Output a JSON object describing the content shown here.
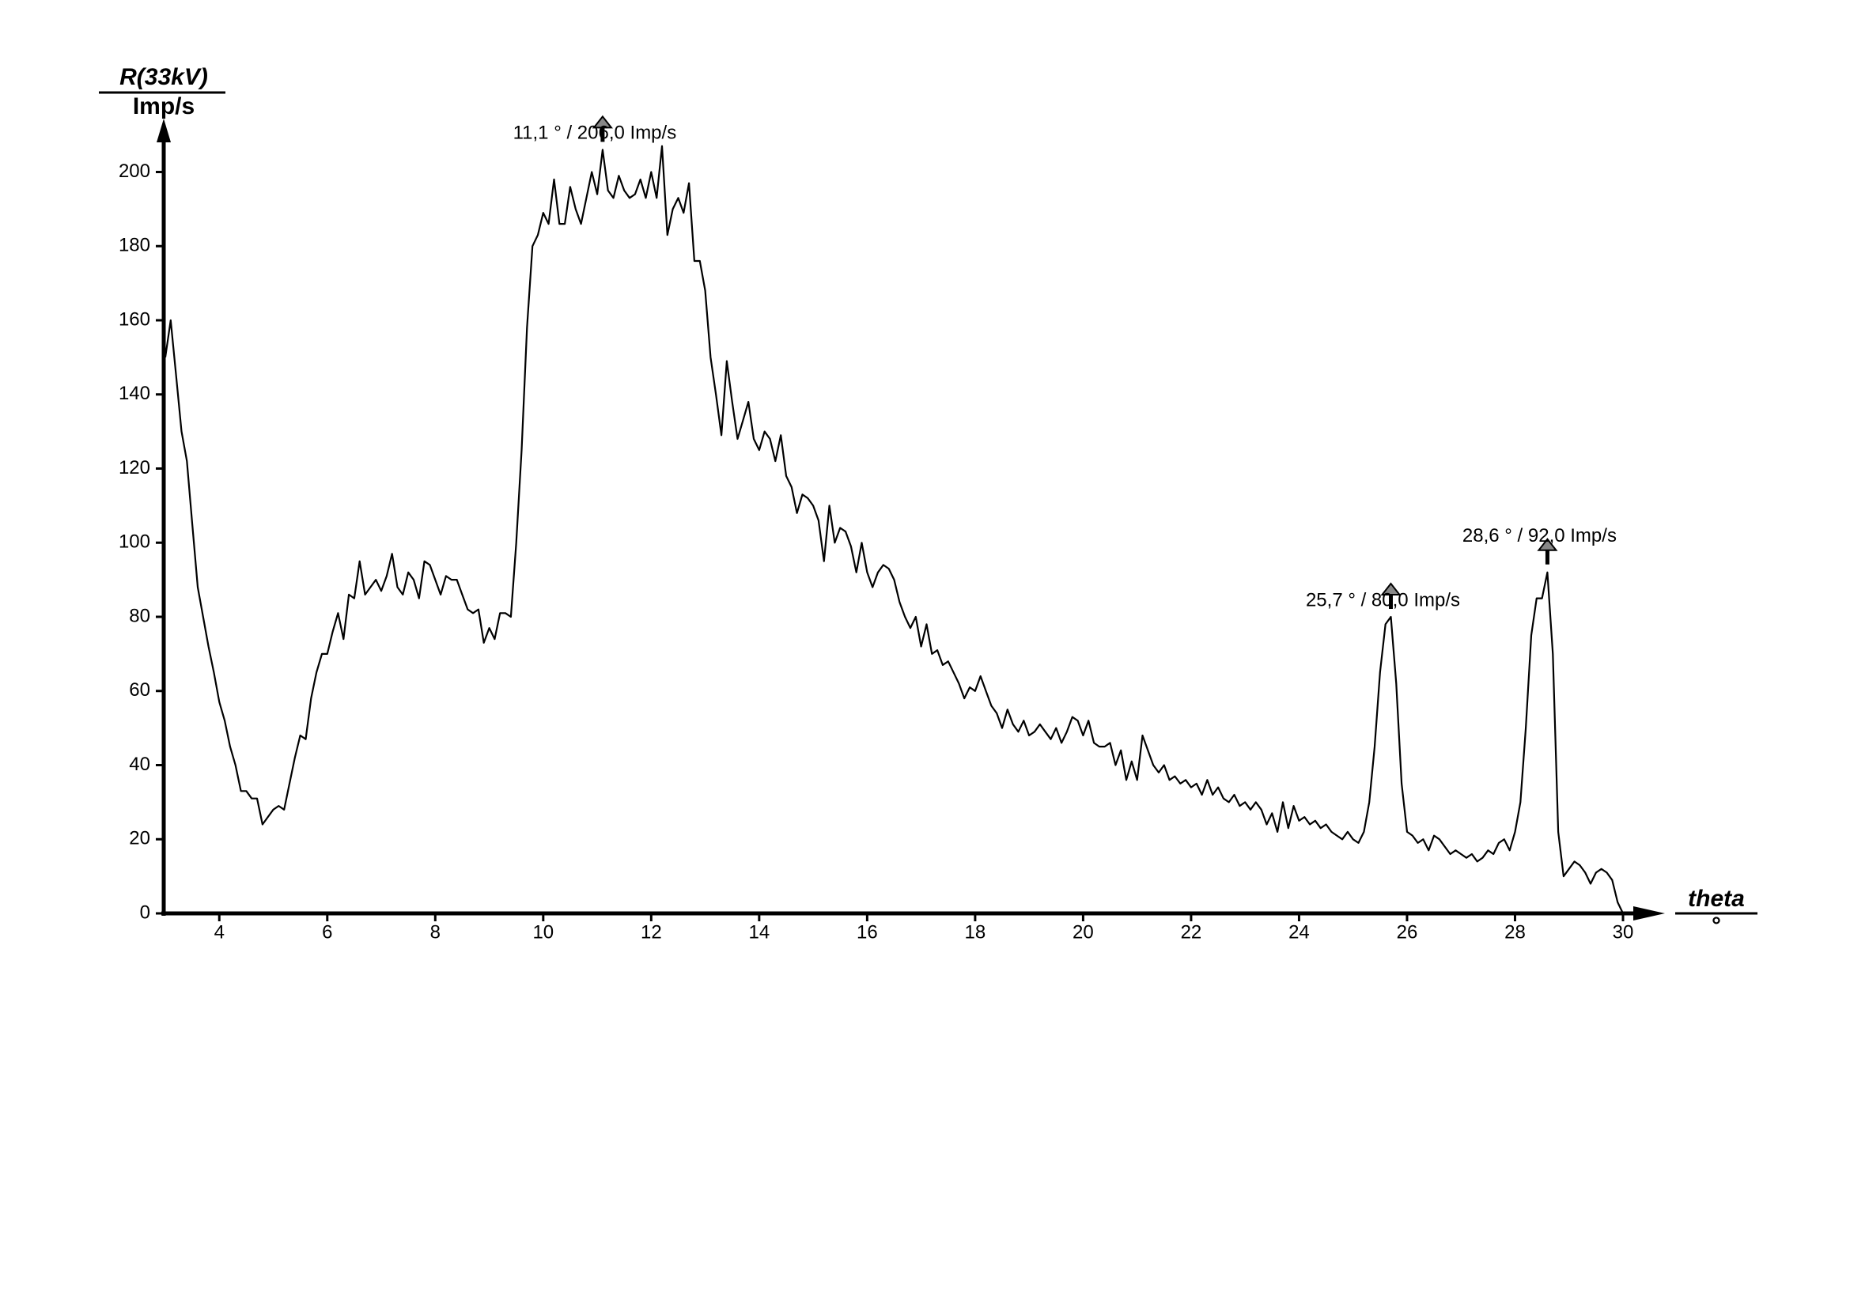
{
  "chart_data": {
    "type": "line",
    "y_label": "R(33kV)",
    "y_unit": "Imp/s",
    "x_label": "theta",
    "x_unit": "°",
    "x": [
      3.0,
      3.1,
      3.2,
      3.3,
      3.4,
      3.5,
      3.6,
      3.7,
      3.8,
      3.9,
      4.0,
      4.1,
      4.2,
      4.3,
      4.4,
      4.5,
      4.6,
      4.7,
      4.8,
      4.9,
      5.0,
      5.1,
      5.2,
      5.3,
      5.4,
      5.5,
      5.6,
      5.7,
      5.8,
      5.9,
      6.0,
      6.1,
      6.2,
      6.3,
      6.4,
      6.5,
      6.6,
      6.7,
      6.8,
      6.9,
      7.0,
      7.1,
      7.2,
      7.3,
      7.4,
      7.5,
      7.6,
      7.7,
      7.8,
      7.9,
      8.0,
      8.1,
      8.2,
      8.3,
      8.4,
      8.5,
      8.6,
      8.7,
      8.8,
      8.9,
      9.0,
      9.1,
      9.2,
      9.3,
      9.4,
      9.5,
      9.6,
      9.7,
      9.8,
      9.9,
      10.0,
      10.1,
      10.2,
      10.3,
      10.4,
      10.5,
      10.6,
      10.7,
      10.8,
      10.9,
      11.0,
      11.1,
      11.2,
      11.3,
      11.4,
      11.5,
      11.6,
      11.7,
      11.8,
      11.9,
      12.0,
      12.1,
      12.2,
      12.3,
      12.4,
      12.5,
      12.6,
      12.7,
      12.8,
      12.9,
      13.0,
      13.1,
      13.2,
      13.3,
      13.4,
      13.5,
      13.6,
      13.7,
      13.8,
      13.9,
      14.0,
      14.1,
      14.2,
      14.3,
      14.4,
      14.5,
      14.6,
      14.7,
      14.8,
      14.9,
      15.0,
      15.1,
      15.2,
      15.3,
      15.4,
      15.5,
      15.6,
      15.7,
      15.8,
      15.9,
      16.0,
      16.1,
      16.2,
      16.3,
      16.4,
      16.5,
      16.6,
      16.7,
      16.8,
      16.9,
      17.0,
      17.1,
      17.2,
      17.3,
      17.4,
      17.5,
      17.6,
      17.7,
      17.8,
      17.9,
      18.0,
      18.1,
      18.2,
      18.3,
      18.4,
      18.5,
      18.6,
      18.7,
      18.8,
      18.9,
      19.0,
      19.1,
      19.2,
      19.3,
      19.4,
      19.5,
      19.6,
      19.7,
      19.8,
      19.9,
      20.0,
      20.1,
      20.2,
      20.3,
      20.4,
      20.5,
      20.6,
      20.7,
      20.8,
      20.9,
      21.0,
      21.1,
      21.2,
      21.3,
      21.4,
      21.5,
      21.6,
      21.7,
      21.8,
      21.9,
      22.0,
      22.1,
      22.2,
      22.3,
      22.4,
      22.5,
      22.6,
      22.7,
      22.8,
      22.9,
      23.0,
      23.1,
      23.2,
      23.3,
      23.4,
      23.5,
      23.6,
      23.7,
      23.8,
      23.9,
      24.0,
      24.1,
      24.2,
      24.3,
      24.4,
      24.5,
      24.6,
      24.7,
      24.8,
      24.9,
      25.0,
      25.1,
      25.2,
      25.3,
      25.4,
      25.5,
      25.6,
      25.7,
      25.8,
      25.9,
      26.0,
      26.1,
      26.2,
      26.3,
      26.4,
      26.5,
      26.6,
      26.7,
      26.8,
      26.9,
      27.0,
      27.1,
      27.2,
      27.3,
      27.4,
      27.5,
      27.6,
      27.7,
      27.8,
      27.9,
      28.0,
      28.1,
      28.2,
      28.3,
      28.4,
      28.5,
      28.6,
      28.7,
      28.8,
      28.9,
      29.0,
      29.1,
      29.2,
      29.3,
      29.4,
      29.5,
      29.6,
      29.7,
      29.8,
      29.9,
      30.0
    ],
    "series": [
      {
        "color": "#000000",
        "values": [
          150,
          160,
          145,
          130,
          122,
          105,
          88,
          80,
          72,
          65,
          57,
          52,
          45,
          40,
          33,
          33,
          31,
          31,
          24,
          26,
          28,
          29,
          28,
          35,
          42,
          48,
          47,
          58,
          65,
          70,
          70,
          76,
          81,
          74,
          86,
          85,
          95,
          86,
          88,
          90,
          87,
          91,
          97,
          88,
          86,
          92,
          90,
          85,
          95,
          94,
          90,
          86,
          91,
          90,
          90,
          86,
          82,
          81,
          82,
          73,
          77,
          74,
          81,
          81,
          80,
          100,
          125,
          158,
          180,
          183,
          189,
          186,
          198,
          186,
          186,
          196,
          190,
          186,
          193,
          200,
          194,
          206,
          195,
          193,
          199,
          195,
          193,
          194,
          198,
          193,
          200,
          193,
          207,
          183,
          190,
          193,
          189,
          197,
          176,
          176,
          168,
          150,
          140,
          129,
          149,
          138,
          128,
          133,
          138,
          128,
          125,
          130,
          128,
          122,
          129,
          118,
          115,
          108,
          113,
          112,
          110,
          106,
          95,
          110,
          100,
          104,
          103,
          99,
          92,
          100,
          92,
          88,
          92,
          94,
          93,
          90,
          84,
          80,
          77,
          80,
          72,
          78,
          70,
          71,
          67,
          68,
          65,
          62,
          58,
          61,
          60,
          64,
          60,
          56,
          54,
          50,
          55,
          51,
          49,
          52,
          48,
          49,
          51,
          49,
          47,
          50,
          46,
          49,
          53,
          52,
          48,
          52,
          46,
          45,
          45,
          46,
          40,
          44,
          36,
          41,
          36,
          48,
          44,
          40,
          38,
          40,
          36,
          37,
          35,
          36,
          34,
          35,
          32,
          36,
          32,
          34,
          31,
          30,
          32,
          29,
          30,
          28,
          30,
          28,
          24,
          27,
          22,
          30,
          23,
          29,
          25,
          26,
          24,
          25,
          23,
          24,
          22,
          21,
          20,
          22,
          20,
          19,
          22,
          30,
          45,
          65,
          78,
          80,
          62,
          35,
          22,
          21,
          19,
          20,
          17,
          21,
          20,
          18,
          16,
          17,
          16,
          15,
          16,
          14,
          15,
          17,
          16,
          19,
          20,
          17,
          22,
          30,
          50,
          75,
          85,
          85,
          92,
          70,
          22,
          10,
          12,
          14,
          13,
          11,
          8,
          11,
          12,
          11,
          9,
          3,
          0
        ]
      }
    ],
    "annotations": [
      {
        "text": "11,1 ° / 206,0 Imp/s",
        "x": 11.1,
        "y": 206
      },
      {
        "text": "25,7 ° / 80,0 Imp/s",
        "x": 25.7,
        "y": 80
      },
      {
        "text": "28,6 ° / 92,0 Imp/s",
        "x": 28.6,
        "y": 92
      }
    ],
    "xlim": [
      3,
      30
    ],
    "ylim": [
      0,
      200
    ],
    "xticks": [
      4,
      6,
      8,
      10,
      12,
      14,
      16,
      18,
      20,
      22,
      24,
      26,
      28,
      30
    ],
    "yticks": [
      0,
      20,
      40,
      60,
      80,
      100,
      120,
      140,
      160,
      180,
      200
    ]
  }
}
